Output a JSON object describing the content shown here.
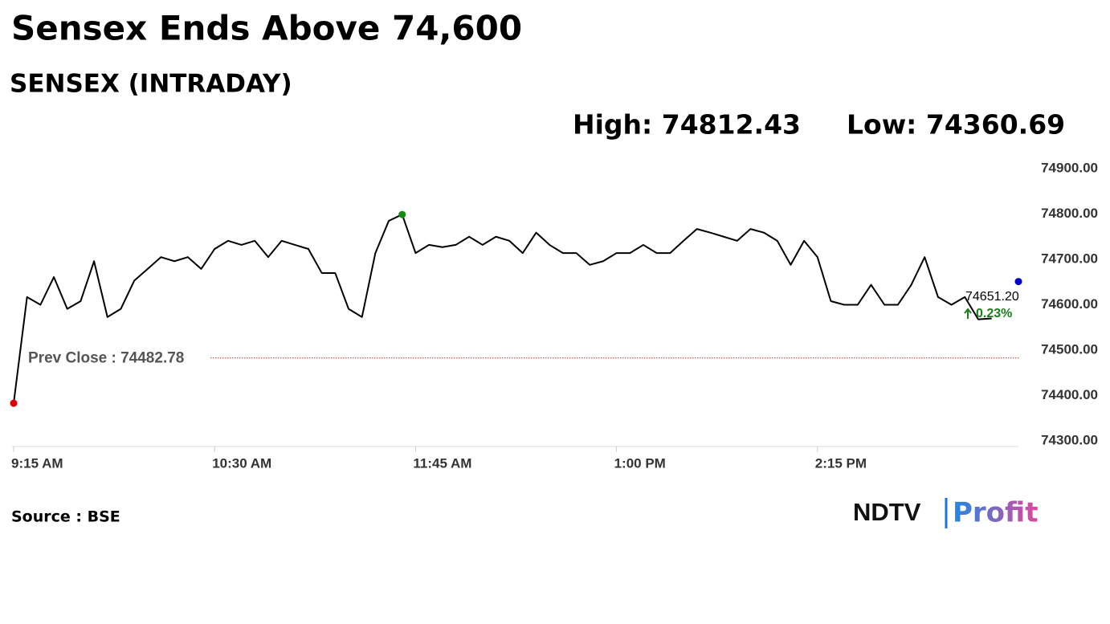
{
  "chart_data": {
    "type": "line",
    "title": "Sensex Ends Above 74,600",
    "subtitle": "SENSEX (INTRADAY)",
    "high": "High: 74812.43",
    "low": "Low: 74360.69",
    "source": "Source : BSE",
    "brand": [
      "NDTV",
      "Profit"
    ],
    "prev_close": {
      "value": 74482.78,
      "label": "Prev Close : 74482.78",
      "color": "#c0392b"
    },
    "last": {
      "label": "74651.20",
      "change": "0.23%",
      "change_color": "#1a7f1a"
    },
    "categories": [
      "9:15 AM",
      null,
      null,
      null,
      null,
      null,
      null,
      null,
      null,
      null,
      null,
      null,
      null,
      null,
      null,
      "10:30 AM",
      null,
      null,
      null,
      null,
      null,
      null,
      null,
      null,
      null,
      null,
      null,
      null,
      null,
      null,
      "11:45 AM",
      null,
      null,
      null,
      null,
      null,
      null,
      null,
      null,
      null,
      null,
      null,
      null,
      null,
      null,
      "1:00 PM",
      null,
      null,
      null,
      null,
      null,
      null,
      null,
      null,
      null,
      null,
      null,
      null,
      null,
      null,
      "2:15 PM",
      null,
      null,
      null,
      null,
      null,
      null,
      null,
      null,
      null,
      null,
      null,
      null,
      null,
      null,
      null
    ],
    "series": [
      {
        "color": "#000000",
        "values": [
          74383,
          74617,
          74600,
          74661,
          74591,
          74608,
          74696,
          74573,
          74591,
          74653,
          74679,
          74705,
          74696,
          74705,
          74679,
          74723,
          74741,
          74732,
          74741,
          74705,
          74741,
          74732,
          74723,
          74670,
          74670,
          74591,
          74573,
          74714,
          74785,
          74799,
          74714,
          74732,
          74727,
          74732,
          74750,
          74732,
          74750,
          74741,
          74714,
          74759,
          74732,
          74714,
          74714,
          74688,
          74696,
          74714,
          74714,
          74732,
          74714,
          74714,
          74741,
          74767,
          74759,
          74750,
          74741,
          74767,
          74759,
          74741,
          74688,
          74741,
          74705,
          74608,
          74600,
          74600,
          74644,
          74600,
          74600,
          74644,
          74705,
          74617,
          74600,
          74617,
          74568,
          74570,
          null,
          74651.2
        ]
      }
    ],
    "markers": [
      {
        "index": 0,
        "color": "#e00000"
      },
      {
        "index": 29,
        "color": "#138a13"
      },
      {
        "index": 75,
        "color": "#0000cc"
      }
    ],
    "ylim": [
      74300,
      74900
    ],
    "yticks": [
      {
        "value": 74300,
        "label": "74300.00"
      },
      {
        "value": 74400,
        "label": "74400.00"
      },
      {
        "value": 74500,
        "label": "74500.00"
      },
      {
        "value": 74600,
        "label": "74600.00"
      },
      {
        "value": 74700,
        "label": "74700.00"
      },
      {
        "value": 74800,
        "label": "74800.00"
      },
      {
        "value": 74900,
        "label": "74900.00"
      }
    ]
  }
}
